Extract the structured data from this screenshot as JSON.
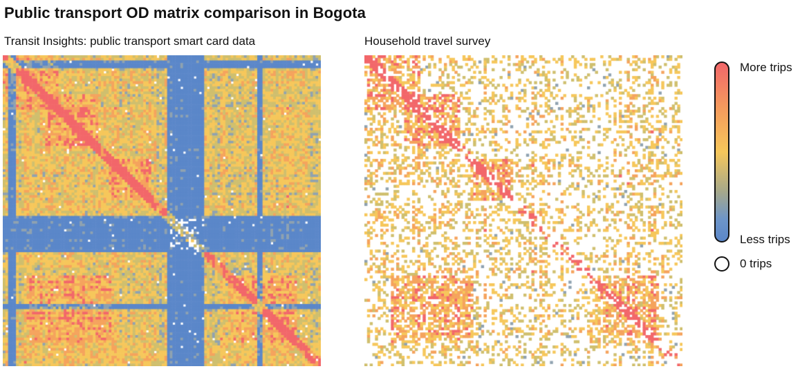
{
  "title": "Public transport OD matrix comparison in Bogota",
  "chart_data": [
    {
      "type": "heatmap",
      "title": "Transit Insights: public transport smart card data",
      "grid_cells": 120,
      "empty_share": 0.01,
      "color_scale": [
        "#5b87c9",
        "#8fa2b0",
        "#cfbf6e",
        "#f6c75b",
        "#f5a35d",
        "#f2676a"
      ]
    },
    {
      "type": "heatmap",
      "title": "Household travel survey",
      "grid_cells": 120,
      "empty_share": 0.55,
      "color_scale": [
        "#5b87c9",
        "#8fa2b0",
        "#cfbf6e",
        "#f6c75b",
        "#f5a35d",
        "#f2676a"
      ]
    }
  ],
  "legend": {
    "more_label": "More trips",
    "less_label": "Less trips",
    "zero_label": "0 trips",
    "gradient": [
      "#f2676a",
      "#f6c75b",
      "#5b87c9"
    ],
    "zero_color": "#ffffff"
  }
}
